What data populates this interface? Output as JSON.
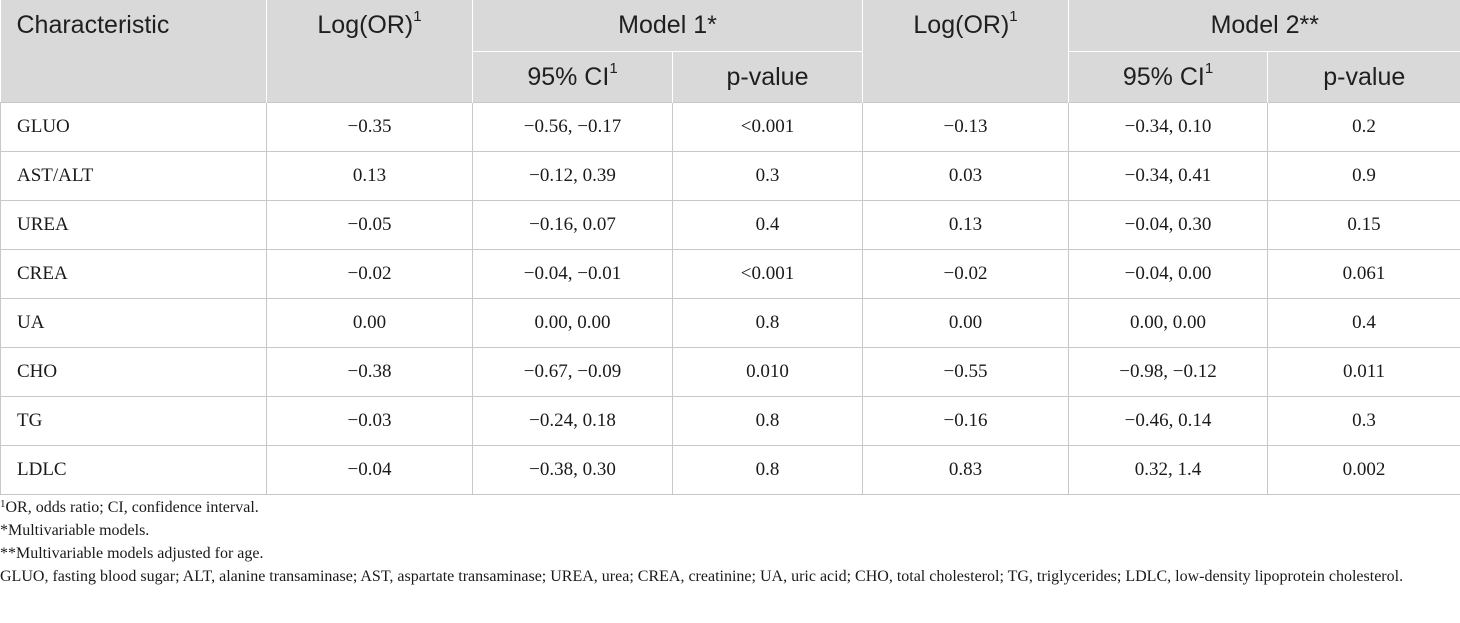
{
  "table": {
    "headers": {
      "characteristic": "Characteristic",
      "logor1": "Log(OR)",
      "logor1_sup": "1",
      "model1": "Model 1*",
      "logor2": "Log(OR)",
      "logor2_sup": "1",
      "model2": "Model 2**",
      "ci1": "95% CI",
      "ci1_sup": "1",
      "p1": "p-value",
      "ci2": "95% CI",
      "ci2_sup": "1",
      "p2": "p-value"
    },
    "rows": [
      {
        "name": "GLUO",
        "logor1": "−0.35",
        "ci1": "−0.56, −0.17",
        "p1": "<0.001",
        "logor2": "−0.13",
        "ci2": "−0.34, 0.10",
        "p2": "0.2"
      },
      {
        "name": "AST/ALT",
        "logor1": "0.13",
        "ci1": "−0.12, 0.39",
        "p1": "0.3",
        "logor2": "0.03",
        "ci2": "−0.34, 0.41",
        "p2": "0.9"
      },
      {
        "name": "UREA",
        "logor1": "−0.05",
        "ci1": "−0.16, 0.07",
        "p1": "0.4",
        "logor2": "0.13",
        "ci2": "−0.04, 0.30",
        "p2": "0.15"
      },
      {
        "name": "CREA",
        "logor1": "−0.02",
        "ci1": "−0.04, −0.01",
        "p1": "<0.001",
        "logor2": "−0.02",
        "ci2": "−0.04, 0.00",
        "p2": "0.061"
      },
      {
        "name": "UA",
        "logor1": "0.00",
        "ci1": "0.00, 0.00",
        "p1": "0.8",
        "logor2": "0.00",
        "ci2": "0.00, 0.00",
        "p2": "0.4"
      },
      {
        "name": "CHO",
        "logor1": "−0.38",
        "ci1": "−0.67, −0.09",
        "p1": "0.010",
        "logor2": "−0.55",
        "ci2": "−0.98, −0.12",
        "p2": "0.011"
      },
      {
        "name": "TG",
        "logor1": "−0.03",
        "ci1": "−0.24, 0.18",
        "p1": "0.8",
        "logor2": "−0.16",
        "ci2": "−0.46, 0.14",
        "p2": "0.3"
      },
      {
        "name": "LDLC",
        "logor1": "−0.04",
        "ci1": "−0.38, 0.30",
        "p1": "0.8",
        "logor2": "0.83",
        "ci2": "0.32, 1.4",
        "p2": "0.002"
      }
    ]
  },
  "footnotes": {
    "note1_sup": "1",
    "note1": "OR, odds ratio; CI, confidence interval.",
    "note2": "*Multivariable models.",
    "note3": "**Multivariable models adjusted for age.",
    "note4": "GLUO, fasting blood sugar; ALT, alanine transaminase; AST, aspartate transaminase; UREA, urea; CREA, creatinine; UA, uric acid; CHO, total cholesterol; TG, triglycerides; LDLC, low-density lipoprotein cholesterol."
  }
}
